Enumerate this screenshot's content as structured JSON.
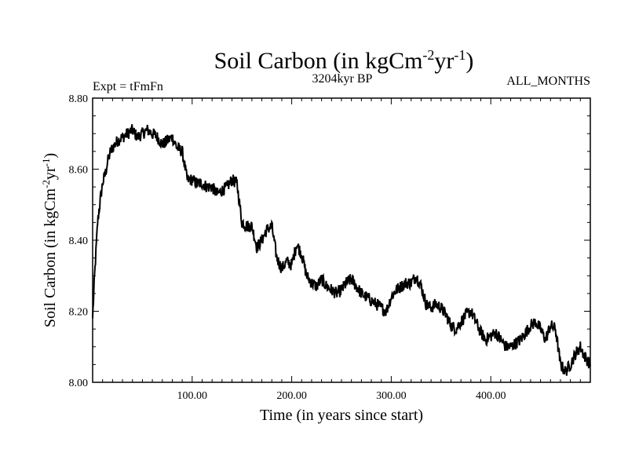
{
  "colors": {
    "background": "#ffffff",
    "ink": "#000000"
  },
  "header": {
    "title_main": "Soil Carbon (in kgCm",
    "title_sup1": "-2",
    "title_mid": "yr",
    "title_sup2": "-1",
    "title_end": ")",
    "experiment": "Expt = tFmFn",
    "period": "3204kyr BP",
    "months": "ALL_MONTHS"
  },
  "axes": {
    "xlabel": "Time (in years since start)",
    "ylabel_main": "Soil Carbon (in kgCm",
    "ylabel_sup1": "-2",
    "ylabel_mid": "yr",
    "ylabel_sup2": "-1",
    "ylabel_end": ")"
  },
  "chart_data": {
    "type": "line",
    "title": "Soil Carbon (in kgCm-2yr-1)",
    "subtitle": "3204kyr BP",
    "xlabel": "Time (in years since start)",
    "ylabel": "Soil Carbon (in kgCm-2yr-1)",
    "xlim": [
      0,
      500
    ],
    "ylim": [
      8.0,
      8.8
    ],
    "x_ticks": [
      100,
      200,
      300,
      400
    ],
    "x_tick_labels": [
      "100.00",
      "200.00",
      "300.00",
      "400.00"
    ],
    "y_ticks": [
      8.0,
      8.2,
      8.4,
      8.6,
      8.8
    ],
    "y_tick_labels": [
      "8.00",
      "8.20",
      "8.40",
      "8.60",
      "8.80"
    ],
    "series": [
      {
        "name": "Soil Carbon",
        "x": [
          0,
          2,
          5,
          8,
          10,
          13,
          15,
          18,
          20,
          25,
          30,
          35,
          40,
          45,
          50,
          55,
          60,
          65,
          70,
          75,
          80,
          85,
          90,
          95,
          100,
          105,
          110,
          115,
          120,
          125,
          130,
          135,
          140,
          145,
          150,
          155,
          160,
          165,
          170,
          175,
          180,
          185,
          190,
          195,
          200,
          205,
          210,
          215,
          220,
          225,
          230,
          235,
          240,
          245,
          250,
          255,
          260,
          265,
          270,
          275,
          280,
          285,
          290,
          295,
          300,
          305,
          310,
          315,
          320,
          325,
          330,
          335,
          340,
          345,
          350,
          355,
          360,
          365,
          370,
          375,
          380,
          385,
          390,
          395,
          400,
          405,
          410,
          415,
          420,
          425,
          430,
          435,
          440,
          445,
          450,
          455,
          460,
          465,
          470,
          475,
          480,
          485,
          490,
          495,
          500
        ],
        "values": [
          8.18,
          8.3,
          8.45,
          8.52,
          8.56,
          8.59,
          8.62,
          8.65,
          8.66,
          8.68,
          8.69,
          8.7,
          8.71,
          8.69,
          8.7,
          8.71,
          8.7,
          8.69,
          8.67,
          8.68,
          8.69,
          8.66,
          8.65,
          8.57,
          8.57,
          8.56,
          8.56,
          8.55,
          8.55,
          8.53,
          8.54,
          8.55,
          8.57,
          8.56,
          8.45,
          8.44,
          8.44,
          8.38,
          8.4,
          8.43,
          8.44,
          8.35,
          8.32,
          8.34,
          8.33,
          8.39,
          8.36,
          8.3,
          8.28,
          8.27,
          8.29,
          8.27,
          8.26,
          8.25,
          8.26,
          8.28,
          8.29,
          8.27,
          8.25,
          8.24,
          8.23,
          8.22,
          8.21,
          8.2,
          8.24,
          8.26,
          8.27,
          8.28,
          8.28,
          8.3,
          8.27,
          8.22,
          8.21,
          8.22,
          8.21,
          8.19,
          8.16,
          8.15,
          8.17,
          8.19,
          8.2,
          8.17,
          8.14,
          8.12,
          8.13,
          8.14,
          8.12,
          8.1,
          8.1,
          8.11,
          8.12,
          8.14,
          8.16,
          8.17,
          8.15,
          8.12,
          8.16,
          8.15,
          8.05,
          8.03,
          8.05,
          8.08,
          8.1,
          8.07,
          8.05
        ]
      }
    ]
  }
}
